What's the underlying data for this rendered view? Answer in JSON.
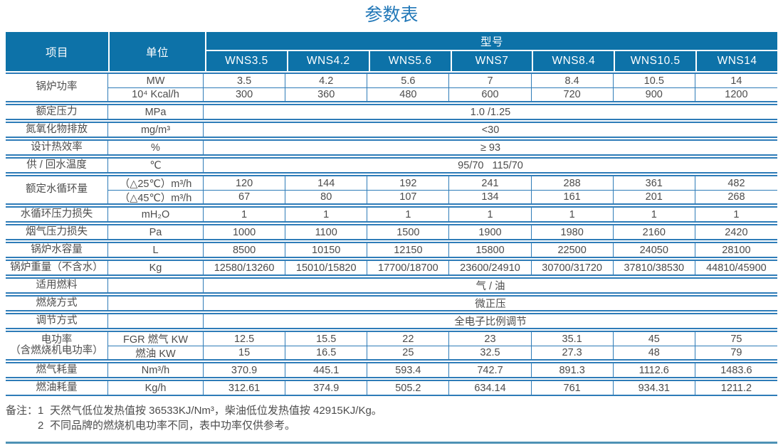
{
  "title": "参数表",
  "colors": {
    "header_bg": "#0d72a8",
    "grid_line": "#2e7cb8",
    "title_blue": "#2278b8",
    "bottom_rule": "#4e92b5",
    "body_text": "#4c4c4c"
  },
  "header": {
    "item": "项目",
    "unit": "单位",
    "model": "型号",
    "models": [
      "WNS3.5",
      "WNS4.2",
      "WNS5.6",
      "WNS7",
      "WNS8.4",
      "WNS10.5",
      "WNS14"
    ]
  },
  "groups": [
    {
      "label": "锅炉功率",
      "rows": [
        {
          "unit": "MW",
          "values": [
            "3.5",
            "4.2",
            "5.6",
            "7",
            "8.4",
            "10.5",
            "14"
          ]
        },
        {
          "unit": "10⁴ Kcal/h",
          "values": [
            "300",
            "360",
            "480",
            "600",
            "720",
            "900",
            "1200"
          ]
        }
      ]
    },
    {
      "label": "额定压力",
      "rows": [
        {
          "unit": "MPa",
          "span": "1.0 /1.25"
        }
      ]
    },
    {
      "label": "氮氧化物排放",
      "rows": [
        {
          "unit": "mg/m³",
          "span": "<30"
        }
      ]
    },
    {
      "label": "设计热效率",
      "rows": [
        {
          "unit": "%",
          "span": "≥ 93"
        }
      ]
    },
    {
      "label": "供 / 回水温度",
      "rows": [
        {
          "unit": "℃",
          "span": "95/70   115/70"
        }
      ]
    },
    {
      "label": "额定水循环量",
      "rows": [
        {
          "unit": "（△25℃）m³/h",
          "values": [
            "120",
            "144",
            "192",
            "241",
            "288",
            "361",
            "482"
          ]
        },
        {
          "unit": "（△45℃）m³/h",
          "values": [
            "67",
            "80",
            "107",
            "134",
            "161",
            "201",
            "268"
          ]
        }
      ]
    },
    {
      "label": "水循环压力损失",
      "rows": [
        {
          "unit": "mH₂O",
          "values": [
            "1",
            "1",
            "1",
            "1",
            "1",
            "1",
            "1"
          ]
        }
      ]
    },
    {
      "label": "烟气压力损失",
      "rows": [
        {
          "unit": "Pa",
          "values": [
            "1000",
            "1100",
            "1500",
            "1900",
            "1980",
            "2160",
            "2420"
          ]
        }
      ]
    },
    {
      "label": "锅炉水容量",
      "rows": [
        {
          "unit": "L",
          "values": [
            "8500",
            "10150",
            "12150",
            "15800",
            "22500",
            "24050",
            "28100"
          ]
        }
      ]
    },
    {
      "label": "锅炉重量（不含水）",
      "rows": [
        {
          "unit": "Kg",
          "values": [
            "12580/13260",
            "15010/15820",
            "17700/18700",
            "23600/24910",
            "30700/31720",
            "37810/38530",
            "44810/45900"
          ]
        }
      ]
    },
    {
      "label": "适用燃料",
      "rows": [
        {
          "unit": "",
          "span": "气 / 油"
        }
      ]
    },
    {
      "label": "燃烧方式",
      "rows": [
        {
          "unit": "",
          "span": "微正压"
        }
      ]
    },
    {
      "label": "调节方式",
      "rows": [
        {
          "unit": "",
          "span": "全电子比例调节"
        }
      ]
    },
    {
      "label": "电功率\n（含燃烧机电功率）",
      "rows": [
        {
          "unit": "FGR 燃气 KW",
          "values": [
            "12.5",
            "15.5",
            "22",
            "23",
            "35.1",
            "45",
            "75"
          ]
        },
        {
          "unit": "燃油 KW",
          "values": [
            "15",
            "16.5",
            "25",
            "32.5",
            "27.3",
            "48",
            "79"
          ]
        }
      ]
    },
    {
      "label": "燃气耗量",
      "rows": [
        {
          "unit": "Nm³/h",
          "values": [
            "370.9",
            "445.1",
            "593.4",
            "742.7",
            "891.3",
            "1112.6",
            "1483.6"
          ]
        }
      ]
    },
    {
      "label": "燃油耗量",
      "rows": [
        {
          "unit": "Kg/h",
          "values": [
            "312.61",
            "374.9",
            "505.2",
            "634.14",
            "761",
            "934.31",
            "1211.2"
          ]
        }
      ]
    }
  ],
  "notes": {
    "label": "备注：",
    "items": [
      {
        "num": "1",
        "text": "天然气低位发热值按 36533KJ/Nm³，柴油低位发热值按 42915KJ/Kg。"
      },
      {
        "num": "2",
        "text": "不同品牌的燃烧机电功率不同，表中功率仅供参考。"
      }
    ]
  }
}
